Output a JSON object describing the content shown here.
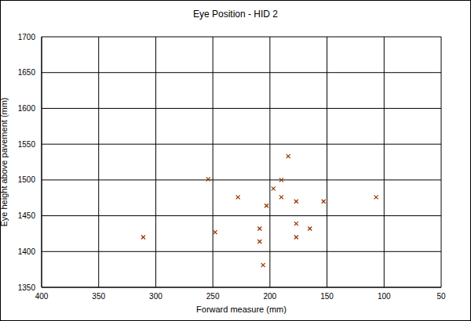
{
  "chart_data": {
    "type": "scatter",
    "title": "Eye Position - HID 2",
    "x_label": "Forward measure (mm)",
    "y_label": "Eye height above pavement (mm)",
    "x": [
      311,
      254,
      248,
      228,
      209,
      209,
      206,
      203,
      197,
      190,
      190,
      184,
      177,
      177,
      177,
      165,
      153,
      107
    ],
    "values": [
      1420,
      1501,
      1427,
      1476,
      1432,
      1414,
      1381,
      1464,
      1488,
      1500,
      1476,
      1533,
      1470,
      1439,
      1420,
      1432,
      1470,
      1476
    ],
    "color": "#993300",
    "marker": "x",
    "xlim": [
      400,
      50
    ],
    "xticks": [
      400,
      350,
      300,
      250,
      200,
      150,
      100,
      50
    ],
    "ylim": [
      1350,
      1700
    ],
    "yticks": [
      1350,
      1400,
      1450,
      1500,
      1550,
      1600,
      1650,
      1700
    ],
    "grid": true
  }
}
